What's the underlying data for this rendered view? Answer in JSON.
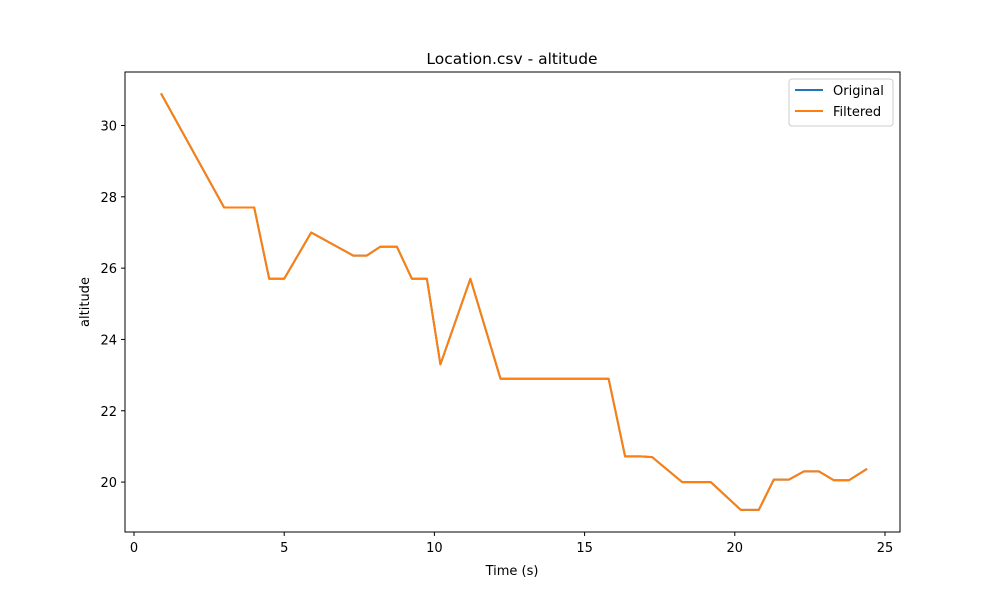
{
  "chart_data": {
    "type": "line",
    "title": "Location.csv - altitude",
    "xlabel": "Time (s)",
    "ylabel": "altitude",
    "xlim": [
      -0.3,
      25.5
    ],
    "ylim": [
      18.6,
      31.5
    ],
    "x_ticks": [
      0,
      5,
      10,
      15,
      20,
      25
    ],
    "y_ticks": [
      20,
      22,
      24,
      26,
      28,
      30
    ],
    "grid": false,
    "legend_position": "top-right",
    "series": [
      {
        "name": "Original",
        "color": "#1f77b4",
        "x": [
          0.9,
          3.0,
          4.0,
          4.5,
          5.0,
          5.9,
          7.3,
          7.75,
          8.2,
          8.75,
          9.25,
          9.75,
          10.2,
          11.2,
          12.2,
          13.5,
          15.0,
          15.8,
          16.35,
          16.85,
          17.25,
          18.25,
          19.2,
          20.2,
          20.8,
          21.3,
          21.8,
          22.3,
          22.8,
          23.3,
          23.8,
          24.4
        ],
        "y": [
          30.9,
          27.7,
          27.7,
          25.7,
          25.7,
          27.0,
          26.35,
          26.35,
          26.6,
          26.6,
          25.7,
          25.7,
          23.3,
          25.7,
          22.9,
          22.9,
          22.9,
          22.9,
          20.72,
          20.72,
          20.7,
          20.0,
          20.0,
          19.22,
          19.22,
          20.07,
          20.07,
          20.3,
          20.3,
          20.05,
          20.05,
          20.37
        ]
      },
      {
        "name": "Filtered",
        "color": "#ff7f0e",
        "x": [
          0.9,
          3.0,
          4.0,
          4.5,
          5.0,
          5.9,
          7.3,
          7.75,
          8.2,
          8.75,
          9.25,
          9.75,
          10.2,
          11.2,
          12.2,
          13.5,
          15.0,
          15.8,
          16.35,
          16.85,
          17.25,
          18.25,
          19.2,
          20.2,
          20.8,
          21.3,
          21.8,
          22.3,
          22.8,
          23.3,
          23.8,
          24.4
        ],
        "y": [
          30.9,
          27.7,
          27.7,
          25.7,
          25.7,
          27.0,
          26.35,
          26.35,
          26.6,
          26.6,
          25.7,
          25.7,
          23.3,
          25.7,
          22.9,
          22.9,
          22.9,
          22.9,
          20.72,
          20.72,
          20.7,
          20.0,
          20.0,
          19.22,
          19.22,
          20.07,
          20.07,
          20.3,
          20.3,
          20.05,
          20.05,
          20.37
        ]
      }
    ]
  }
}
